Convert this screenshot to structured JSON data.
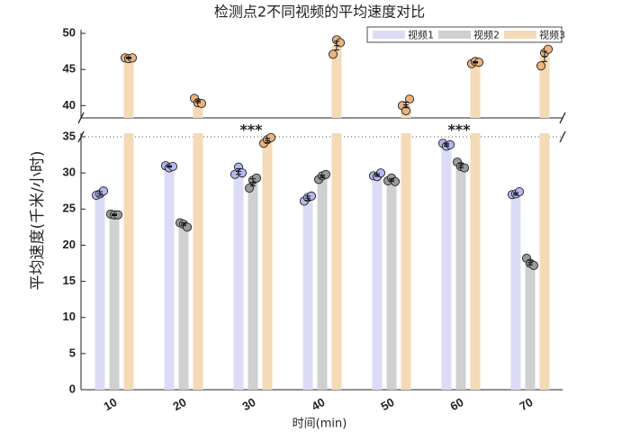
{
  "chart_data": {
    "type": "bar",
    "title": "检测点2不同视频的平均速度对比",
    "xlabel": "时间(min)",
    "ylabel": "平均速度(千米/小时)",
    "categories": [
      "10",
      "20",
      "30",
      "40",
      "50",
      "60",
      "70"
    ],
    "broken_axis": true,
    "ylim": [
      0,
      35.5
    ],
    "yticks": [
      0,
      5,
      10,
      15,
      20,
      25,
      30,
      35
    ],
    "y2lim": [
      38.3,
      50.5
    ],
    "y2ticks": [
      40,
      45,
      50
    ],
    "legend": "upper right",
    "series": [
      {
        "name": "视频1",
        "color": "#dcdcf7",
        "point_color": "#b4b8f2",
        "values": [
          27.1,
          30.9,
          30.2,
          26.5,
          29.7,
          33.9,
          27.1
        ],
        "errors": [
          0.3,
          0.1,
          0.4,
          0.3,
          0.2,
          0.2,
          0.2
        ],
        "points": [
          [
            26.9,
            27.1,
            27.5
          ],
          [
            31.0,
            30.7,
            30.9
          ],
          [
            29.8,
            30.8,
            30.0
          ],
          [
            26.1,
            26.6,
            26.8
          ],
          [
            29.6,
            29.5,
            30.0
          ],
          [
            34.1,
            33.7,
            33.9
          ],
          [
            27.0,
            27.1,
            27.4
          ]
        ]
      },
      {
        "name": "视频2",
        "color": "#d0d0d0",
        "point_color": "#9a9a9a",
        "values": [
          24.2,
          22.9,
          28.7,
          29.5,
          29.0,
          31.0,
          17.6
        ],
        "errors": [
          0.1,
          0.2,
          0.5,
          0.2,
          0.2,
          0.3,
          0.3
        ],
        "points": [
          [
            24.3,
            24.2,
            24.2
          ],
          [
            23.1,
            22.9,
            22.5
          ],
          [
            27.9,
            29.0,
            29.3
          ],
          [
            29.1,
            29.6,
            29.8
          ],
          [
            28.9,
            29.3,
            28.8
          ],
          [
            31.5,
            30.9,
            30.7
          ],
          [
            18.2,
            17.5,
            17.2
          ]
        ]
      },
      {
        "name": "视频3",
        "color": "#f5dab8",
        "point_color": "#ebb37e",
        "values": [
          46.6,
          40.6,
          34.5,
          48.3,
          40.1,
          46.0,
          46.8
        ],
        "errors": [
          0.1,
          0.2,
          0.3,
          0.6,
          0.4,
          0.1,
          0.7
        ],
        "points": [
          [
            46.6,
            46.5,
            46.6
          ],
          [
            41.0,
            40.4,
            40.3
          ],
          [
            34.1,
            34.6,
            34.9
          ],
          [
            47.1,
            49.1,
            48.7
          ],
          [
            40.0,
            39.3,
            40.9
          ],
          [
            45.8,
            46.1,
            46.0
          ],
          [
            45.5,
            47.3,
            47.8
          ]
        ]
      }
    ],
    "annotations": [
      {
        "text": "***",
        "category": "30"
      },
      {
        "text": "***",
        "category": "60"
      }
    ]
  }
}
